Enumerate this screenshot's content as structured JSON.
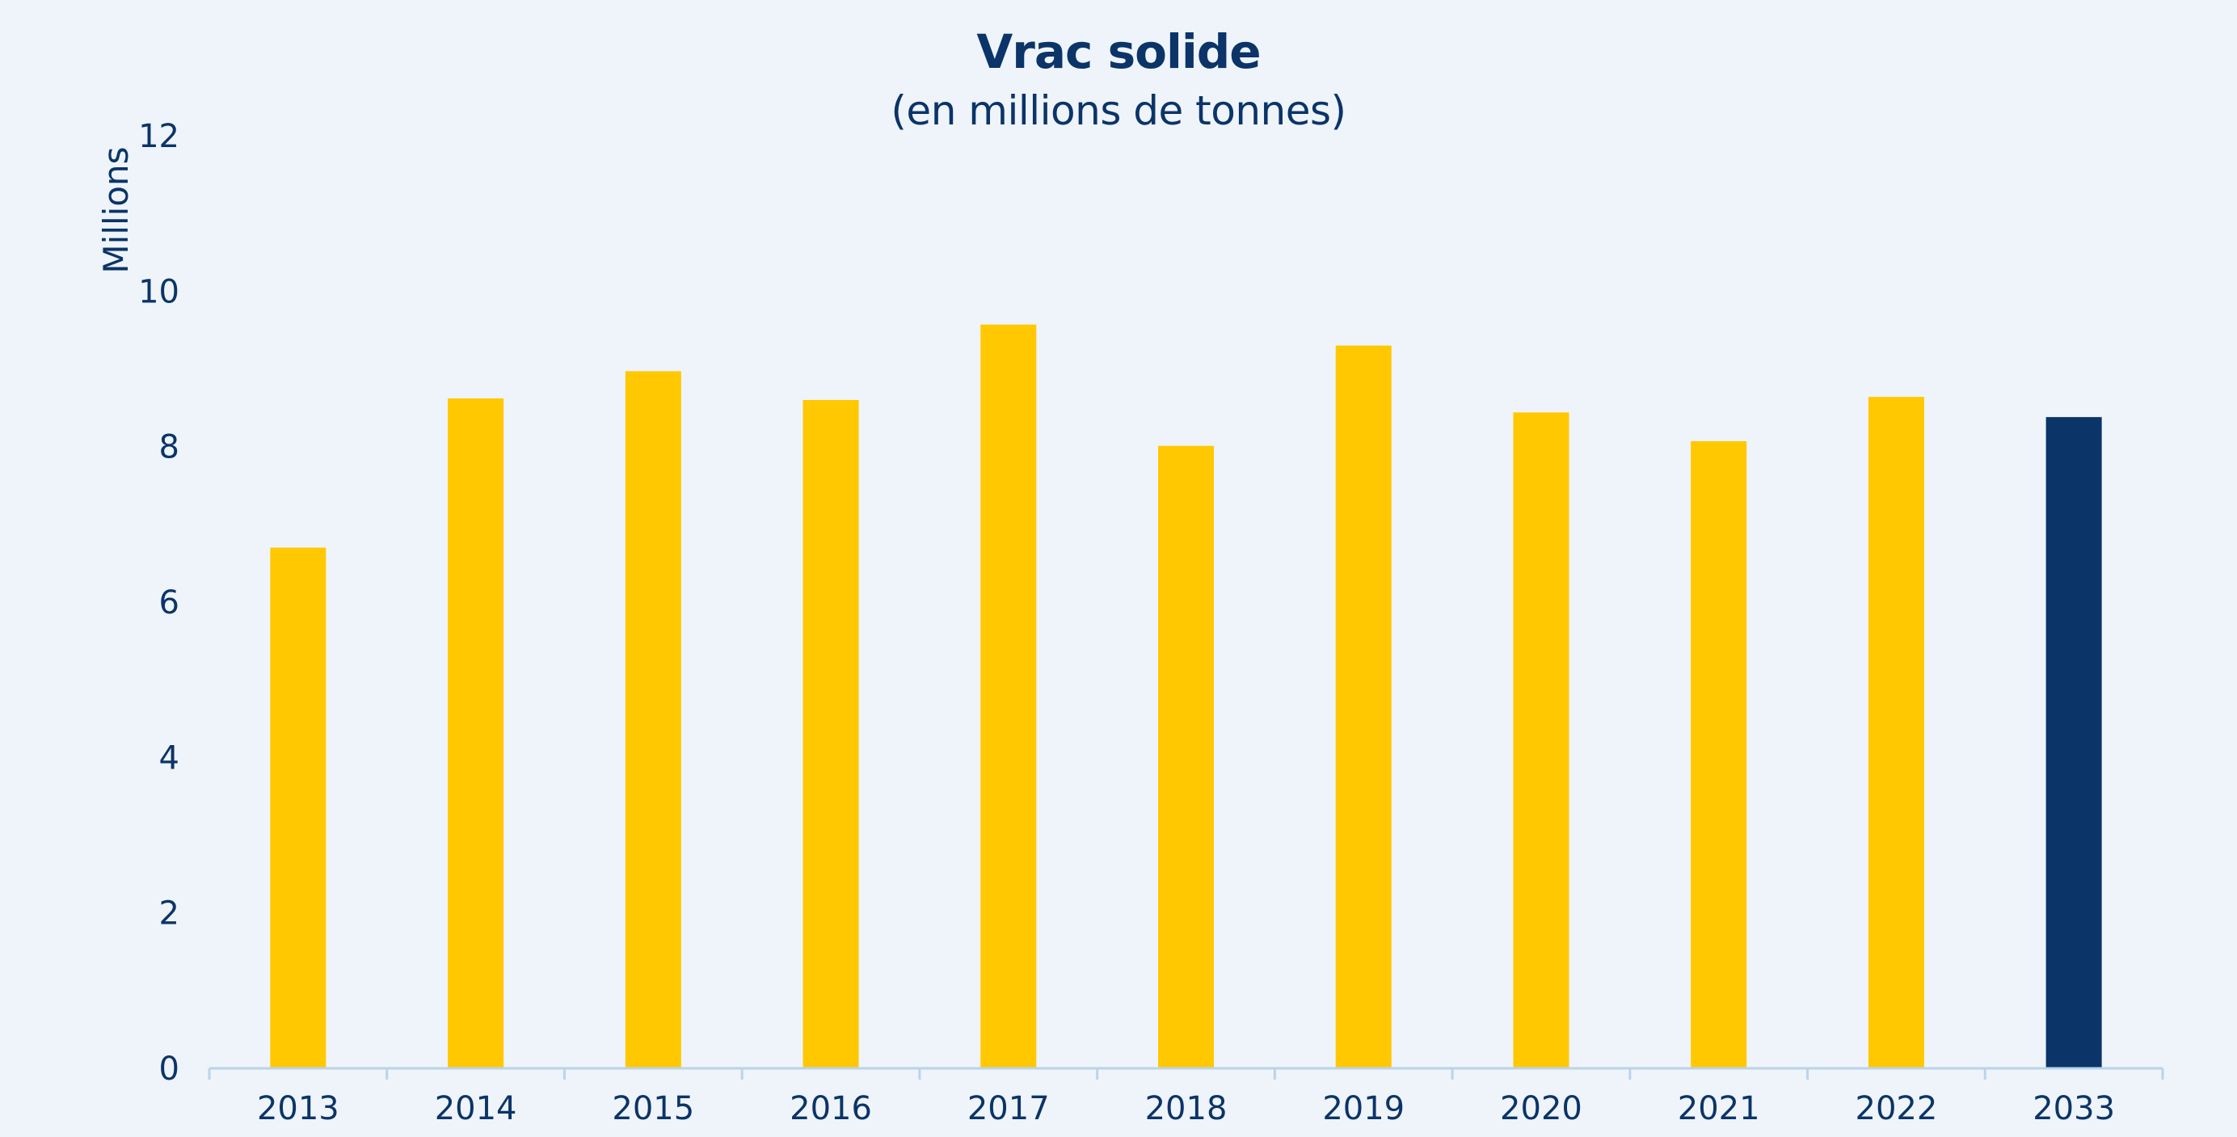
{
  "chart_data": {
    "type": "bar",
    "title": "Vrac solide",
    "subtitle": "(en millions de tonnes)",
    "ylabel": "Millions",
    "xlabel": "",
    "ylim": [
      0,
      12
    ],
    "yticks": [
      "0",
      "2",
      "4",
      "6",
      "8",
      "10",
      "12"
    ],
    "categories": [
      "2013",
      "2014",
      "2015",
      "2016",
      "2017",
      "2018",
      "2019",
      "2020",
      "2021",
      "2022",
      "2033"
    ],
    "values": [
      6.7,
      8.62,
      8.97,
      8.6,
      9.57,
      8.01,
      9.3,
      8.44,
      8.07,
      8.64,
      8.38
    ],
    "highlight_category": "2033",
    "grid": false,
    "legend": "none"
  },
  "colors": {
    "background": "#eef4f9",
    "bar": "#ffc800",
    "bar_highlight": "#0b3468",
    "text": "#0b3468",
    "axis": "#bcd3ea"
  }
}
